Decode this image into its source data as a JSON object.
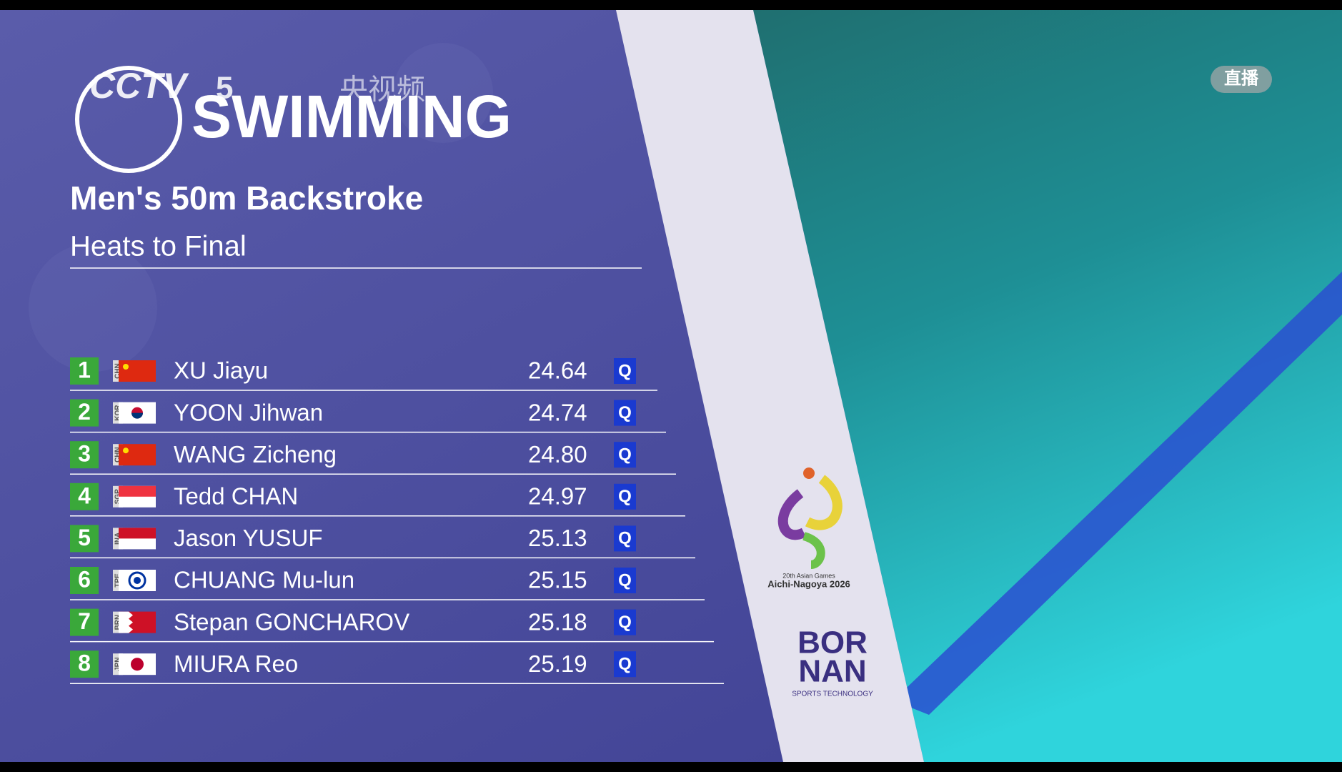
{
  "header": {
    "channel": "CCTV",
    "channel_number": "5",
    "app": "央视频",
    "sport": "SWIMMING",
    "event": "Men's 50m Backstroke",
    "phase": "Heats to Final",
    "live": "直播"
  },
  "table": {
    "rows": [
      [
        "1",
        "CHN",
        "XU Jiayu",
        "24.64",
        "Q"
      ],
      [
        "2",
        "KOR",
        "YOON Jihwan",
        "24.74",
        "Q"
      ],
      [
        "3",
        "CHN",
        "WANG Zicheng",
        "24.80",
        "Q"
      ],
      [
        "4",
        "SGP",
        "Tedd CHAN",
        "24.97",
        "Q"
      ],
      [
        "5",
        "INA",
        "Jason YUSUF",
        "25.13",
        "Q"
      ],
      [
        "6",
        "TPE",
        "CHUANG Mu-lun",
        "25.15",
        "Q"
      ],
      [
        "7",
        "BRN",
        "Stepan GONCHAROV",
        "25.18",
        "Q"
      ],
      [
        "8",
        "JPN",
        "MIURA Reo",
        "25.19",
        "Q"
      ]
    ]
  },
  "logos": {
    "games_line1": "20th Asian Games",
    "games_line2": "Aichi-Nagoya 2026",
    "sponsor_line1": "BOR",
    "sponsor_line2": "NAN",
    "sponsor_line3": "SPORTS TECHNOLOGY"
  }
}
